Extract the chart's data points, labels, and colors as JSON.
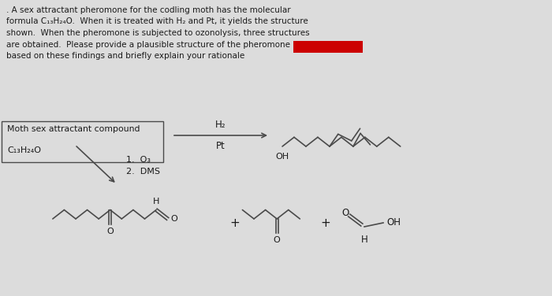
{
  "bg_color": "#dcdcdc",
  "text_color": "#1a1a1a",
  "line_color": "#4a4a4a",
  "highlight_color": "#cc0000",
  "para_lines": [
    ". A sex attractant pheromone for the codling moth has the molecular",
    "formula C₁₃H₂₄O.  When it is treated with H₂ and Pt, it yields the structure",
    "shown.  When the pheromone is subjected to ozonolysis, three structures",
    "are obtained.  Please provide a plausible structure of the pheromone",
    "based on these findings and briefly explain your rationale"
  ],
  "box_line1": "Moth sex attractant compound",
  "box_line2": "C₁₃H₂₄O",
  "h2_label": "H₂",
  "pt_label": "Pt",
  "ozo_label": "1.  O₃",
  "dms_label": "2.  DMS",
  "oh_label": "OH",
  "plus": "+",
  "o_label": "O",
  "h_label": "H",
  "oh2_label": "OH"
}
